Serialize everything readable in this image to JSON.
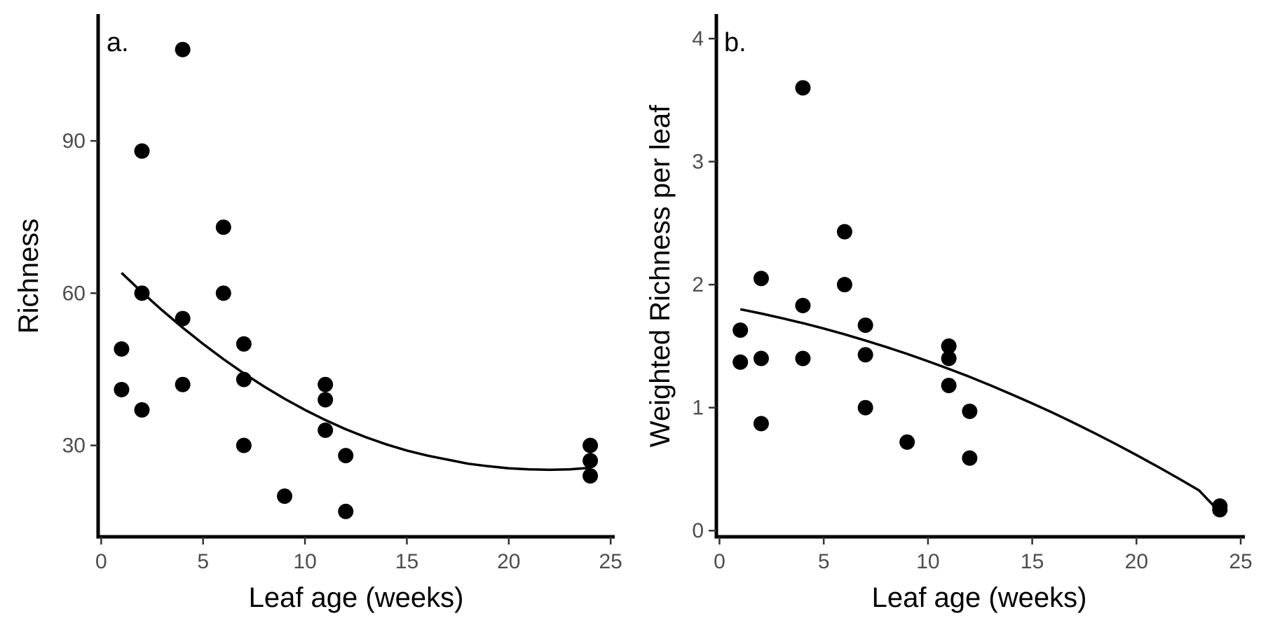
{
  "chart_data": [
    {
      "type": "scatter",
      "panel_label": "a.",
      "xlabel": "Leaf age (weeks)",
      "ylabel": "Richness",
      "xlim": [
        -0.15,
        25.2
      ],
      "ylim": [
        12,
        115
      ],
      "xticks": [
        0,
        5,
        10,
        15,
        20,
        25
      ],
      "yticks": [
        30,
        60,
        90
      ],
      "grid": false,
      "legend": "none",
      "point_color": "#000000",
      "points": [
        {
          "x": 1,
          "y": 49
        },
        {
          "x": 1,
          "y": 41
        },
        {
          "x": 2,
          "y": 88
        },
        {
          "x": 2,
          "y": 60
        },
        {
          "x": 2,
          "y": 37
        },
        {
          "x": 4,
          "y": 108
        },
        {
          "x": 4,
          "y": 55
        },
        {
          "x": 4,
          "y": 42
        },
        {
          "x": 6,
          "y": 73
        },
        {
          "x": 6,
          "y": 60
        },
        {
          "x": 7,
          "y": 50
        },
        {
          "x": 7,
          "y": 43
        },
        {
          "x": 7,
          "y": 30
        },
        {
          "x": 9,
          "y": 20
        },
        {
          "x": 11,
          "y": 42
        },
        {
          "x": 11,
          "y": 39
        },
        {
          "x": 11,
          "y": 33
        },
        {
          "x": 12,
          "y": 28
        },
        {
          "x": 12,
          "y": 17
        },
        {
          "x": 24,
          "y": 30
        },
        {
          "x": 24,
          "y": 27
        },
        {
          "x": 24,
          "y": 24
        }
      ],
      "fit_line": [
        {
          "x": 1,
          "y": 64.0
        },
        {
          "x": 2,
          "y": 60.2
        },
        {
          "x": 3,
          "y": 56.6
        },
        {
          "x": 4,
          "y": 53.2
        },
        {
          "x": 5,
          "y": 50.0
        },
        {
          "x": 6,
          "y": 47.0
        },
        {
          "x": 7,
          "y": 44.2
        },
        {
          "x": 8,
          "y": 41.6
        },
        {
          "x": 9,
          "y": 39.2
        },
        {
          "x": 10,
          "y": 37.0
        },
        {
          "x": 11,
          "y": 35.0
        },
        {
          "x": 12,
          "y": 33.2
        },
        {
          "x": 13,
          "y": 31.6
        },
        {
          "x": 14,
          "y": 30.2
        },
        {
          "x": 15,
          "y": 29.0
        },
        {
          "x": 16,
          "y": 28.0
        },
        {
          "x": 17,
          "y": 27.2
        },
        {
          "x": 18,
          "y": 26.4
        },
        {
          "x": 19,
          "y": 25.9
        },
        {
          "x": 20,
          "y": 25.5
        },
        {
          "x": 21,
          "y": 25.3
        },
        {
          "x": 22,
          "y": 25.2
        },
        {
          "x": 23,
          "y": 25.3
        },
        {
          "x": 24,
          "y": 25.6
        }
      ]
    },
    {
      "type": "scatter",
      "panel_label": "b.",
      "xlabel": "Leaf age (weeks)",
      "ylabel": "Weighted Richness per leaf",
      "xlim": [
        -0.15,
        25.2
      ],
      "ylim": [
        -0.05,
        4.2
      ],
      "xticks": [
        0,
        5,
        10,
        15,
        20,
        25
      ],
      "yticks": [
        0,
        1,
        2,
        3,
        4
      ],
      "grid": false,
      "legend": "none",
      "point_color": "#000000",
      "points": [
        {
          "x": 1,
          "y": 1.63
        },
        {
          "x": 1,
          "y": 1.37
        },
        {
          "x": 2,
          "y": 2.05
        },
        {
          "x": 2,
          "y": 1.4
        },
        {
          "x": 2,
          "y": 0.87
        },
        {
          "x": 4,
          "y": 3.6
        },
        {
          "x": 4,
          "y": 1.83
        },
        {
          "x": 4,
          "y": 1.4
        },
        {
          "x": 6,
          "y": 2.43
        },
        {
          "x": 6,
          "y": 2.0
        },
        {
          "x": 7,
          "y": 1.67
        },
        {
          "x": 7,
          "y": 1.43
        },
        {
          "x": 7,
          "y": 1.0
        },
        {
          "x": 9,
          "y": 0.72
        },
        {
          "x": 11,
          "y": 1.5
        },
        {
          "x": 11,
          "y": 1.4
        },
        {
          "x": 11,
          "y": 1.18
        },
        {
          "x": 12,
          "y": 0.97
        },
        {
          "x": 12,
          "y": 0.59
        },
        {
          "x": 24,
          "y": 0.2
        },
        {
          "x": 24,
          "y": 0.17
        }
      ],
      "fit_line": [
        {
          "x": 1,
          "y": 1.8
        },
        {
          "x": 2,
          "y": 1.765
        },
        {
          "x": 3,
          "y": 1.727
        },
        {
          "x": 4,
          "y": 1.687
        },
        {
          "x": 5,
          "y": 1.643
        },
        {
          "x": 6,
          "y": 1.596
        },
        {
          "x": 7,
          "y": 1.546
        },
        {
          "x": 8,
          "y": 1.493
        },
        {
          "x": 9,
          "y": 1.437
        },
        {
          "x": 10,
          "y": 1.377
        },
        {
          "x": 11,
          "y": 1.315
        },
        {
          "x": 12,
          "y": 1.25
        },
        {
          "x": 13,
          "y": 1.181
        },
        {
          "x": 14,
          "y": 1.109
        },
        {
          "x": 15,
          "y": 1.035
        },
        {
          "x": 16,
          "y": 0.957
        },
        {
          "x": 17,
          "y": 0.876
        },
        {
          "x": 18,
          "y": 0.792
        },
        {
          "x": 19,
          "y": 0.705
        },
        {
          "x": 20,
          "y": 0.615
        },
        {
          "x": 21,
          "y": 0.522
        },
        {
          "x": 22,
          "y": 0.426
        },
        {
          "x": 23,
          "y": 0.327
        },
        {
          "x": 24,
          "y": 0.15
        }
      ]
    }
  ]
}
